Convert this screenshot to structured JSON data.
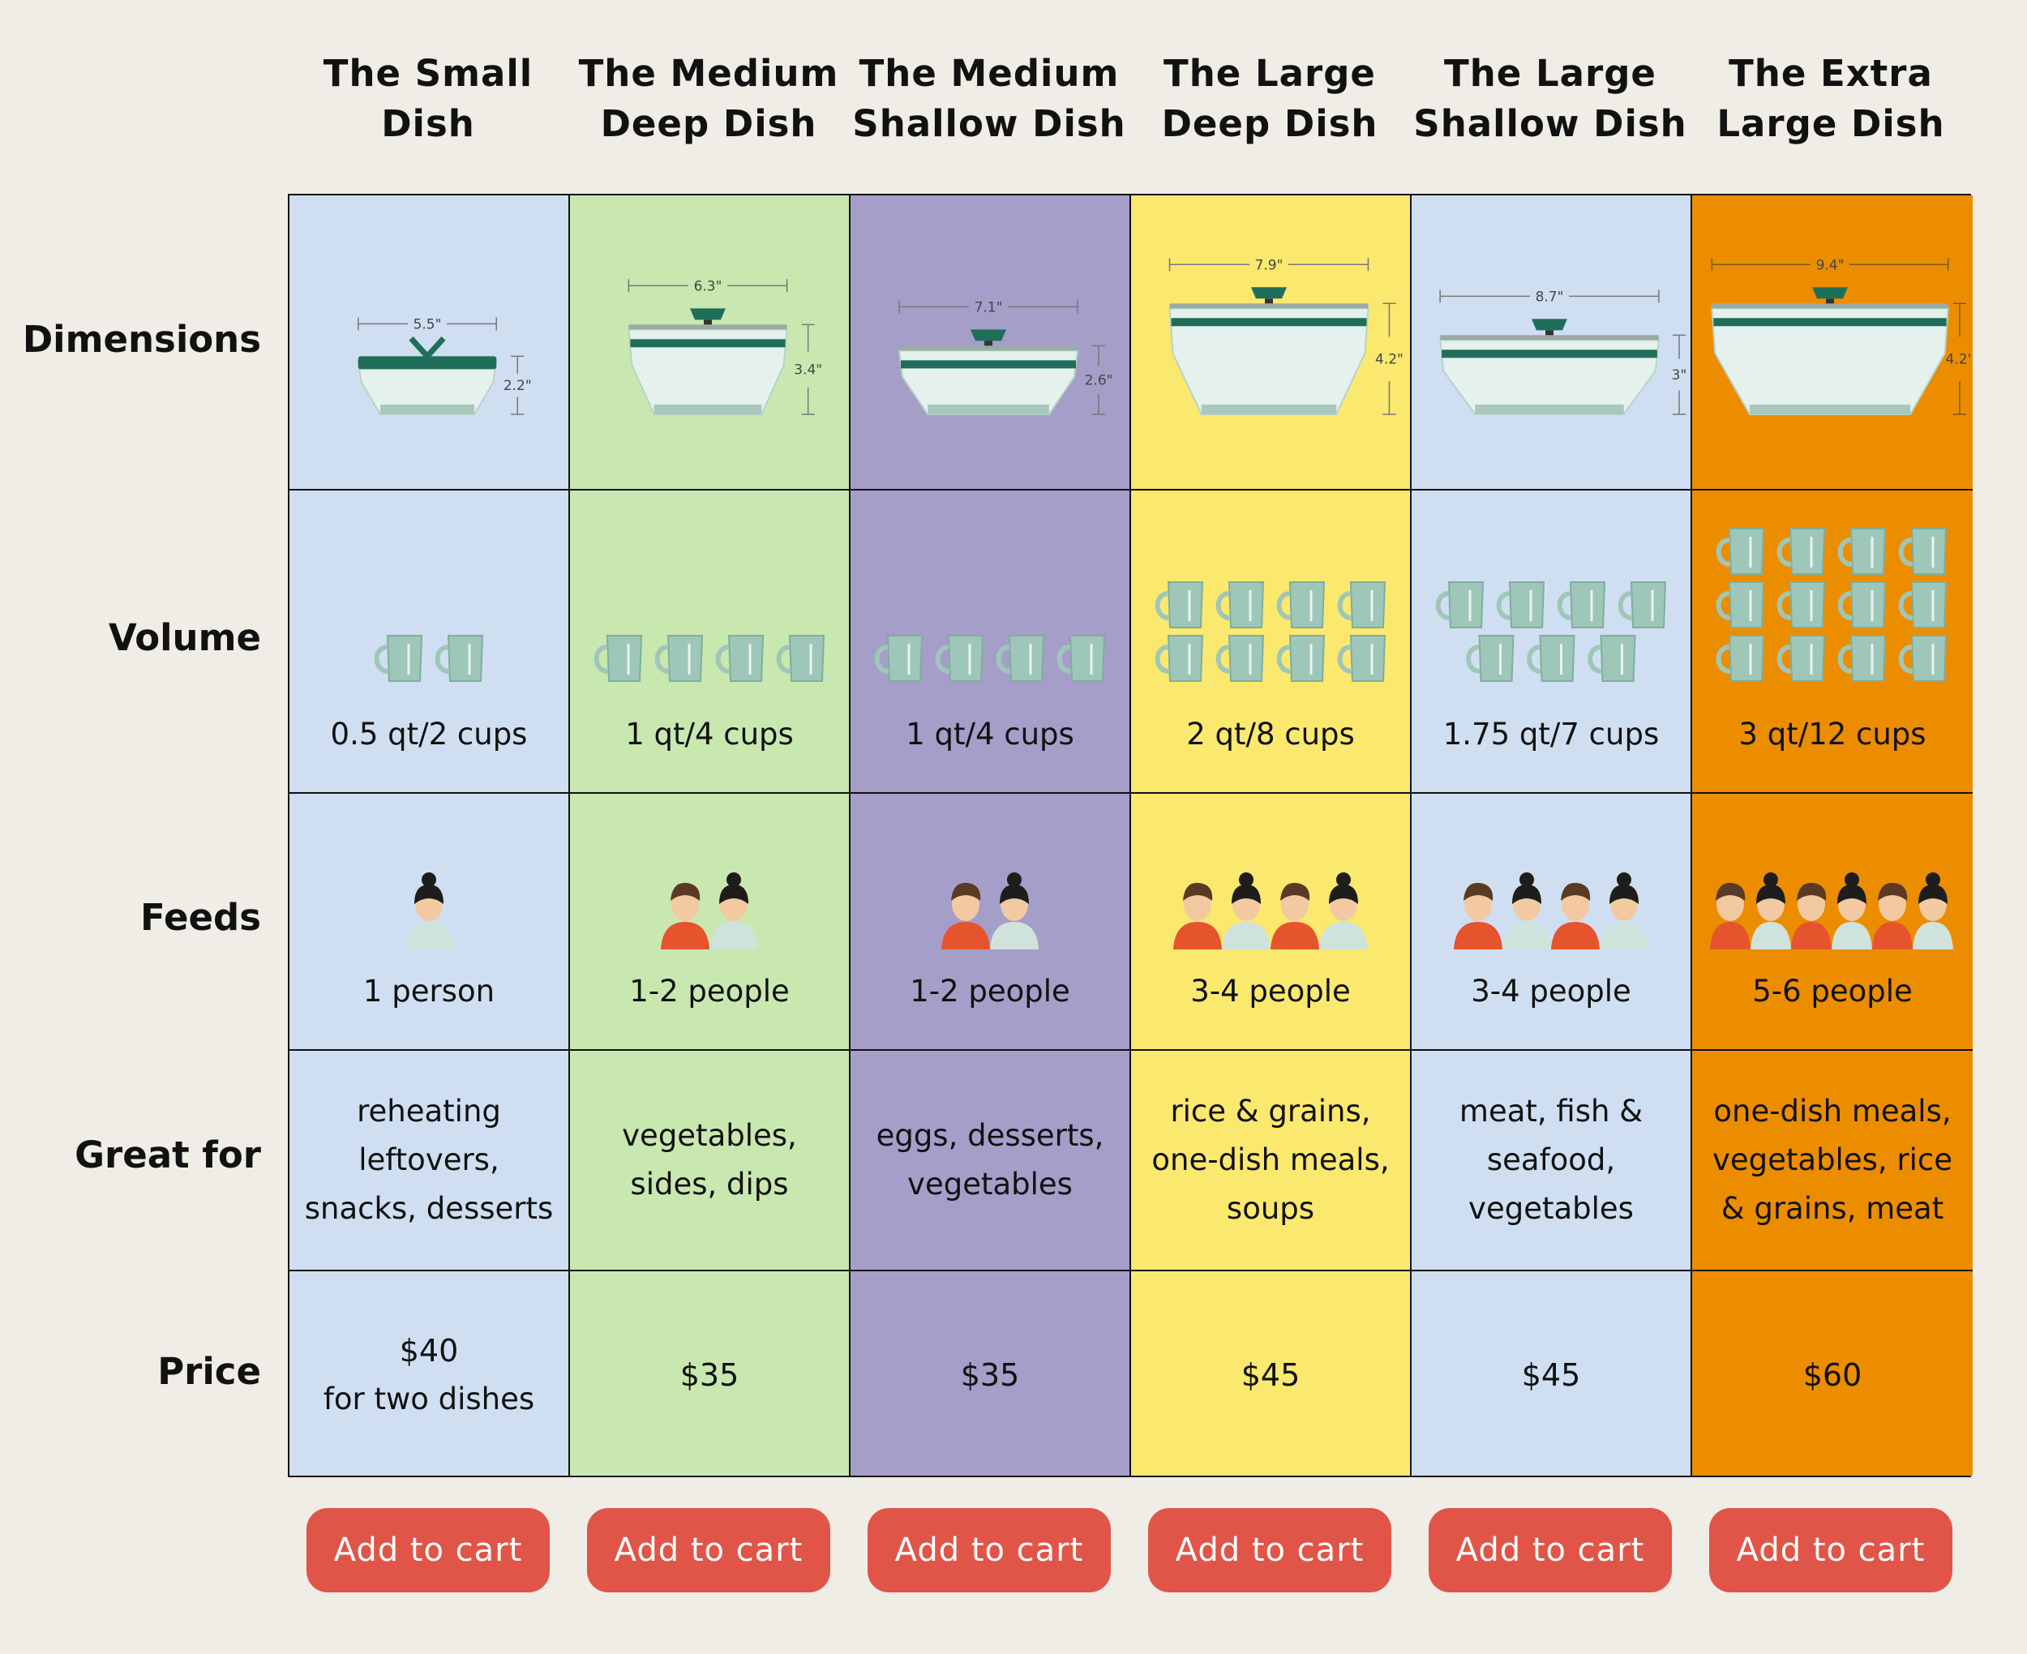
{
  "colors": {
    "background": "#f0ede6",
    "button": "#e05548",
    "border": "#111111",
    "lid": "#1f6e5a"
  },
  "row_labels": [
    "Dimensions",
    "Volume",
    "Feeds",
    "Great for",
    "Price"
  ],
  "dishes": [
    {
      "name": "The Small Dish",
      "name_lines": [
        "The Small",
        "Dish"
      ],
      "color": "#cfdff1",
      "width": "5.5\"",
      "height": "2.2\"",
      "width_in": 5.5,
      "height_in": 2.2,
      "cups_icons": 2,
      "volume": "0.5 qt/2 cups",
      "people_icons": [
        "woman"
      ],
      "feeds": "1 person",
      "great_for": [
        "reheating",
        "leftovers,",
        "snacks, desserts"
      ],
      "price": "$40",
      "price_note": "for two dishes",
      "button": "Add to cart",
      "lid_style": "tab"
    },
    {
      "name": "The Medium Deep Dish",
      "name_lines": [
        "The Medium",
        "Deep Dish"
      ],
      "color": "#c8e8b0",
      "width": "6.3\"",
      "height": "3.4\"",
      "width_in": 6.3,
      "height_in": 3.4,
      "cups_icons": 4,
      "volume": "1 qt/4 cups",
      "people_icons": [
        "man",
        "woman"
      ],
      "feeds": "1-2 people",
      "great_for": [
        "vegetables,",
        "sides, dips"
      ],
      "price": "$35",
      "price_note": "",
      "button": "Add to cart",
      "lid_style": "knob"
    },
    {
      "name": "The Medium Shallow Dish",
      "name_lines": [
        "The Medium",
        "Shallow Dish"
      ],
      "color": "#a59ec9",
      "width": "7.1\"",
      "height": "2.6\"",
      "width_in": 7.1,
      "height_in": 2.6,
      "cups_icons": 4,
      "volume": "1 qt/4 cups",
      "people_icons": [
        "man",
        "woman"
      ],
      "feeds": "1-2 people",
      "great_for": [
        "eggs, desserts,",
        "vegetables"
      ],
      "price": "$35",
      "price_note": "",
      "button": "Add to cart",
      "lid_style": "knob"
    },
    {
      "name": "The Large Deep Dish",
      "name_lines": [
        "The Large",
        "Deep Dish"
      ],
      "color": "#fbe86e",
      "width": "7.9\"",
      "height": "4.2\"",
      "width_in": 7.9,
      "height_in": 4.2,
      "cups_icons": 8,
      "volume": "2 qt/8 cups",
      "people_icons": [
        "man",
        "woman",
        "man",
        "woman"
      ],
      "feeds": "3-4 people",
      "great_for": [
        "rice & grains,",
        "one-dish meals,",
        "soups"
      ],
      "price": "$45",
      "price_note": "",
      "button": "Add to cart",
      "lid_style": "knob"
    },
    {
      "name": "The Large Shallow Dish",
      "name_lines": [
        "The Large",
        "Shallow Dish"
      ],
      "color": "#cfdff1",
      "width": "8.7\"",
      "height": "3\"",
      "width_in": 8.7,
      "height_in": 3,
      "cups_icons": 7,
      "volume": "1.75 qt/7 cups",
      "people_icons": [
        "man",
        "woman",
        "man",
        "woman"
      ],
      "feeds": "3-4 people",
      "great_for": [
        "meat, fish &",
        "seafood,",
        "vegetables"
      ],
      "price": "$45",
      "price_note": "",
      "button": "Add to cart",
      "lid_style": "knob"
    },
    {
      "name": "The Extra Large Dish",
      "name_lines": [
        "The Extra",
        "Large Dish"
      ],
      "color": "#ec8d00",
      "width": "9.4\"",
      "height": "4.2\"",
      "width_in": 9.4,
      "height_in": 4.2,
      "cups_icons": 12,
      "volume": "3 qt/12 cups",
      "people_icons": [
        "man",
        "woman",
        "man",
        "woman",
        "man",
        "woman"
      ],
      "feeds": "5-6 people",
      "great_for": [
        "one-dish meals,",
        "vegetables, rice",
        "& grains, meat"
      ],
      "price": "$60",
      "price_note": "",
      "button": "Add to cart",
      "lid_style": "knob"
    }
  ]
}
